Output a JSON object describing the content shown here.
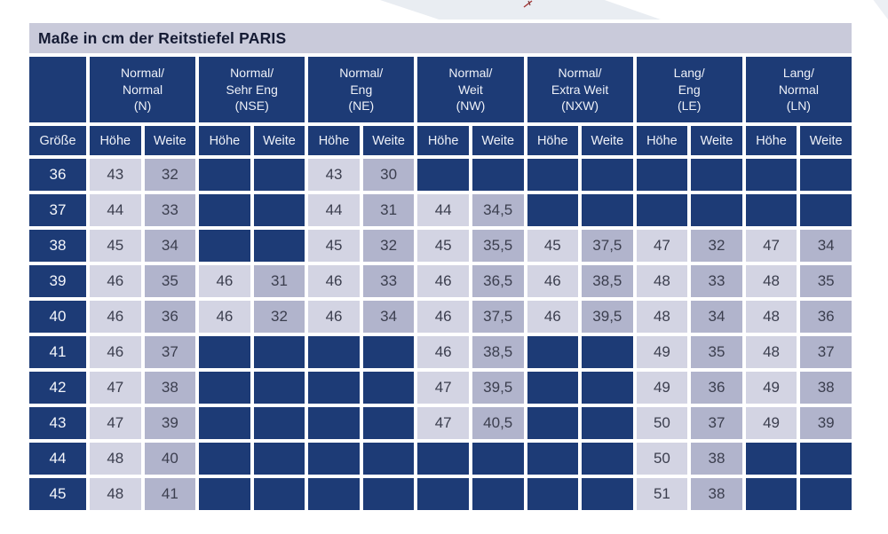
{
  "title": "Maße in cm der Reitstiefel PARIS",
  "colors": {
    "navy": "#1d3b76",
    "cell_light": "#d3d4e3",
    "cell_medium": "#b1b4cc",
    "title_bar": "#c9cada",
    "accent_red": "#a23434"
  },
  "icons": {
    "red_mark": "red-plane-fragment-icon",
    "banner": "decorative-banner-fragment"
  },
  "table": {
    "corner_label": "Größe",
    "sub_headers": [
      "Höhe",
      "Weite"
    ],
    "groups": [
      {
        "line1": "Normal/",
        "line2": "Normal",
        "code": "(N)"
      },
      {
        "line1": "Normal/",
        "line2": "Sehr Eng",
        "code": "(NSE)"
      },
      {
        "line1": "Normal/",
        "line2": "Eng",
        "code": "(NE)"
      },
      {
        "line1": "Normal/",
        "line2": "Weit",
        "code": "(NW)"
      },
      {
        "line1": "Normal/",
        "line2": "Extra Weit",
        "code": "(NXW)"
      },
      {
        "line1": "Lang/",
        "line2": "Eng",
        "code": "(LE)"
      },
      {
        "line1": "Lang/",
        "line2": "Normal",
        "code": "(LN)"
      }
    ],
    "rows": [
      {
        "size": "36",
        "values": [
          "43",
          "32",
          "",
          "",
          "43",
          "30",
          "",
          "",
          "",
          "",
          "",
          "",
          "",
          ""
        ]
      },
      {
        "size": "37",
        "values": [
          "44",
          "33",
          "",
          "",
          "44",
          "31",
          "44",
          "34,5",
          "",
          "",
          "",
          "",
          "",
          ""
        ]
      },
      {
        "size": "38",
        "values": [
          "45",
          "34",
          "",
          "",
          "45",
          "32",
          "45",
          "35,5",
          "45",
          "37,5",
          "47",
          "32",
          "47",
          "34"
        ]
      },
      {
        "size": "39",
        "values": [
          "46",
          "35",
          "46",
          "31",
          "46",
          "33",
          "46",
          "36,5",
          "46",
          "38,5",
          "48",
          "33",
          "48",
          "35"
        ]
      },
      {
        "size": "40",
        "values": [
          "46",
          "36",
          "46",
          "32",
          "46",
          "34",
          "46",
          "37,5",
          "46",
          "39,5",
          "48",
          "34",
          "48",
          "36"
        ]
      },
      {
        "size": "41",
        "values": [
          "46",
          "37",
          "",
          "",
          "",
          "",
          "46",
          "38,5",
          "",
          "",
          "49",
          "35",
          "48",
          "37"
        ]
      },
      {
        "size": "42",
        "values": [
          "47",
          "38",
          "",
          "",
          "",
          "",
          "47",
          "39,5",
          "",
          "",
          "49",
          "36",
          "49",
          "38"
        ]
      },
      {
        "size": "43",
        "values": [
          "47",
          "39",
          "",
          "",
          "",
          "",
          "47",
          "40,5",
          "",
          "",
          "50",
          "37",
          "49",
          "39"
        ]
      },
      {
        "size": "44",
        "values": [
          "48",
          "40",
          "",
          "",
          "",
          "",
          "",
          "",
          "",
          "",
          "50",
          "38",
          "",
          ""
        ]
      },
      {
        "size": "45",
        "values": [
          "48",
          "41",
          "",
          "",
          "",
          "",
          "",
          "",
          "",
          "",
          "51",
          "38",
          "",
          ""
        ]
      }
    ]
  }
}
